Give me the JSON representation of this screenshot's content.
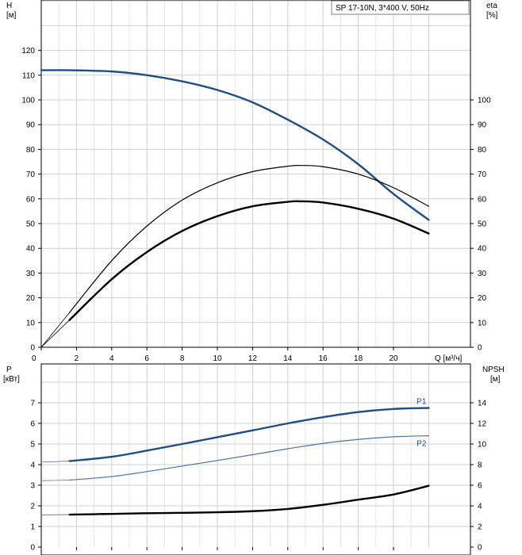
{
  "chart_data": [
    {
      "type": "line",
      "legend_text": "SP 17-10N, 3*400 V, 50Hz",
      "left_axis": {
        "title": "H",
        "unit": "[м]",
        "range": [
          0,
          130
        ],
        "ticks": [
          0,
          10,
          20,
          30,
          40,
          50,
          60,
          70,
          80,
          90,
          100,
          110,
          120
        ]
      },
      "right_axis": {
        "title": "eta",
        "unit": "[%]",
        "range": [
          0,
          130
        ],
        "ticks": [
          0,
          10,
          20,
          30,
          40,
          50,
          60,
          70,
          80,
          90,
          100
        ]
      },
      "x_axis": {
        "label": "Q [м³/ч]",
        "range": [
          0,
          23
        ],
        "ticks": [
          0,
          2,
          4,
          6,
          8,
          10,
          12,
          14,
          16,
          18,
          20
        ],
        "show_tick_labels": true
      },
      "grid": true,
      "series": [
        {
          "key": "H",
          "color": "#1f4e87",
          "width": 2.4,
          "axis": "left",
          "x": [
            0,
            1.6,
            4,
            6,
            8,
            10,
            12,
            14,
            16,
            18,
            20,
            22
          ],
          "y": [
            112,
            112,
            111.5,
            110,
            107.5,
            104,
            99,
            92,
            84,
            74,
            62,
            51.5
          ]
        },
        {
          "key": "eta",
          "color": "#000000",
          "width": 1.2,
          "axis": "right",
          "x": [
            1.6,
            4,
            6,
            8,
            10,
            12,
            14,
            14.7,
            16,
            18,
            20,
            22
          ],
          "y": [
            14,
            35,
            49,
            59.5,
            66.5,
            71,
            73.2,
            73.5,
            73,
            70,
            64.5,
            57
          ]
        },
        {
          "key": "eta_pump",
          "color": "#000000",
          "width": 2.4,
          "axis": "right",
          "x": [
            1.6,
            4,
            6,
            8,
            10,
            12,
            14,
            14.7,
            16,
            18,
            20,
            22
          ],
          "y": [
            11,
            27.5,
            38.5,
            47,
            53,
            57,
            58.8,
            59,
            58.5,
            56,
            52,
            46
          ]
        },
        {
          "key": "eta_tail",
          "color": "#000000",
          "width": 0.8,
          "axis": "right",
          "x": [
            0,
            1.6
          ],
          "y": [
            0,
            14
          ]
        },
        {
          "key": "eta_pump_tail",
          "color": "#000000",
          "width": 0.8,
          "axis": "right",
          "x": [
            0,
            1.6
          ],
          "y": [
            0,
            11
          ]
        }
      ]
    },
    {
      "type": "line",
      "left_axis": {
        "title": "P",
        "unit": "[кВт]",
        "range": [
          0,
          8
        ],
        "ticks": [
          0,
          1,
          2,
          3,
          4,
          5,
          6,
          7
        ]
      },
      "right_axis": {
        "title": "NPSH",
        "unit": "[м]",
        "range": [
          0,
          16
        ],
        "ticks": [
          0,
          2,
          4,
          6,
          8,
          10,
          12,
          14
        ]
      },
      "x_axis": {
        "range": [
          0,
          23
        ],
        "ticks": [
          0,
          2,
          4,
          6,
          8,
          10,
          12,
          14,
          16,
          18,
          20
        ],
        "show_tick_labels": false
      },
      "grid": true,
      "series": [
        {
          "key": "P1",
          "name": "P1",
          "color": "#1f4e87",
          "width": 2.4,
          "axis": "left",
          "label_at": 22,
          "x": [
            1.6,
            4,
            6,
            8,
            10,
            12,
            14,
            16,
            18,
            20,
            22
          ],
          "y": [
            4.17,
            4.38,
            4.68,
            5.0,
            5.33,
            5.66,
            6.0,
            6.3,
            6.55,
            6.7,
            6.75
          ]
        },
        {
          "key": "P1_tail",
          "color": "#4a74a8",
          "width": 0.8,
          "axis": "left",
          "x": [
            0,
            1.6
          ],
          "y": [
            4.12,
            4.17
          ]
        },
        {
          "key": "P2",
          "name": "P2",
          "color": "#4a74a8",
          "width": 1.2,
          "axis": "left",
          "label_at": 22,
          "x": [
            1.6,
            4,
            6,
            8,
            10,
            12,
            14,
            16,
            18,
            20,
            22
          ],
          "y": [
            3.25,
            3.42,
            3.66,
            3.93,
            4.2,
            4.48,
            4.77,
            5.03,
            5.22,
            5.35,
            5.4
          ]
        },
        {
          "key": "P2_tail",
          "color": "#4a74a8",
          "width": 0.8,
          "axis": "left",
          "x": [
            0,
            1.6
          ],
          "y": [
            3.22,
            3.25
          ]
        },
        {
          "key": "NPSH",
          "color": "#000000",
          "width": 2.4,
          "axis": "right",
          "x": [
            1.6,
            4,
            6,
            8,
            10,
            12,
            14,
            16,
            18,
            20,
            22
          ],
          "y": [
            3.15,
            3.22,
            3.28,
            3.32,
            3.38,
            3.48,
            3.7,
            4.1,
            4.6,
            5.1,
            5.95
          ]
        },
        {
          "key": "NPSH_tail",
          "color": "#4a74a8",
          "width": 0.8,
          "axis": "right",
          "x": [
            0,
            1.6
          ],
          "y": [
            3.12,
            3.15
          ]
        }
      ]
    }
  ]
}
